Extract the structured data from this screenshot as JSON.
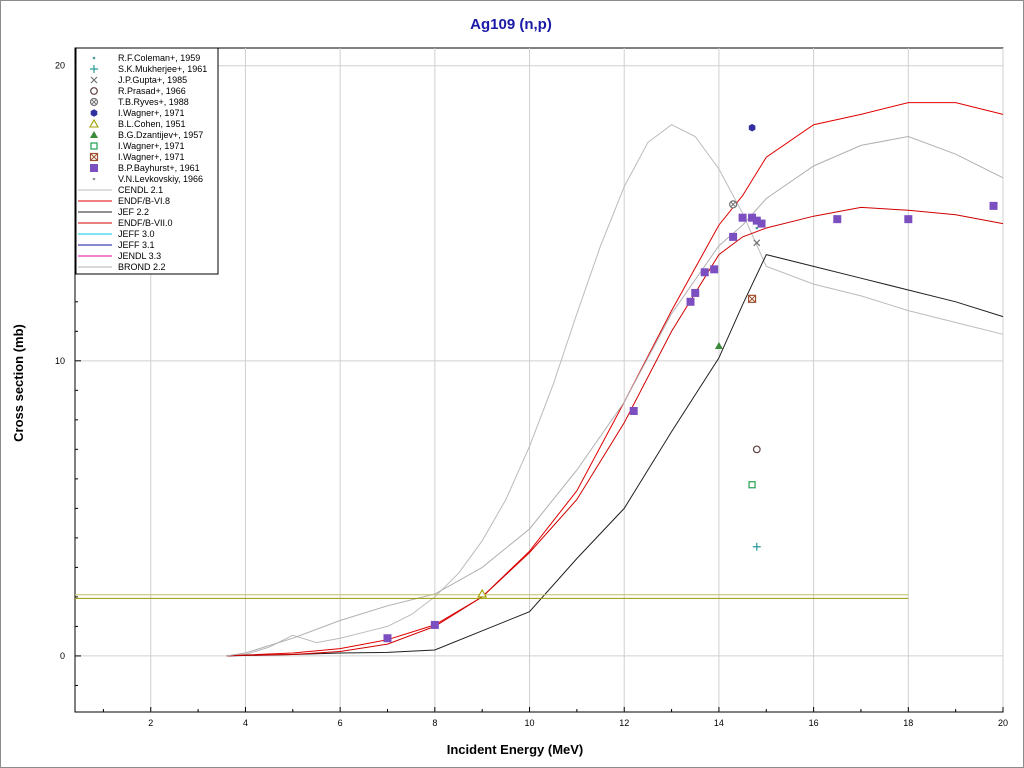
{
  "chart_data": {
    "type": "scatter",
    "title": "Ag109 (n,p)",
    "xlabel": "Incident Energy (MeV)",
    "ylabel": "Cross section (mb)",
    "xlim": [
      0.4,
      20
    ],
    "ylim": [
      -1.9,
      20.6
    ],
    "x_ticks": [
      2,
      4,
      6,
      8,
      10,
      12,
      14,
      16,
      18,
      20
    ],
    "y_ticks": [
      0,
      10,
      20
    ],
    "grid": true,
    "legend_position": "top-left",
    "series": [
      {
        "name": "R.F.Coleman+, 1959",
        "kind": "points",
        "marker": "dot",
        "color": "#4a9a9a",
        "points": [
          [
            14.8,
            14.5
          ]
        ]
      },
      {
        "name": "S.K.Mukherjee+, 1961",
        "kind": "points",
        "marker": "plus",
        "color": "#2a9a9a",
        "points": [
          [
            14.8,
            3.7
          ]
        ]
      },
      {
        "name": "J.P.Gupta+, 1985",
        "kind": "points",
        "marker": "x",
        "color": "#707070",
        "points": [
          [
            14.8,
            14.0
          ]
        ]
      },
      {
        "name": "R.Prasad+, 1966",
        "kind": "points",
        "marker": "circle-open",
        "color": "#604040",
        "points": [
          [
            14.8,
            7.0
          ]
        ]
      },
      {
        "name": "T.B.Ryves+, 1988",
        "kind": "points",
        "marker": "circle-x",
        "color": "#707070",
        "points": [
          [
            14.3,
            15.3
          ]
        ]
      },
      {
        "name": "I.Wagner+, 1971",
        "kind": "points",
        "marker": "hexagon",
        "color": "#3030a0",
        "points": [
          [
            14.7,
            17.9
          ]
        ]
      },
      {
        "name": "B.L.Cohen, 1951",
        "kind": "points",
        "marker": "triangle-open",
        "color": "#a0a000",
        "points": [
          [
            9.0,
            2.1
          ]
        ]
      },
      {
        "name": "B.G.Dzantijev+, 1957",
        "kind": "points",
        "marker": "triangle",
        "color": "#3a8a3a",
        "points": [
          [
            14.0,
            10.5
          ]
        ]
      },
      {
        "name": "I.Wagner+, 1971",
        "kind": "points",
        "marker": "square-open",
        "color": "#20a050",
        "points": [
          [
            14.7,
            5.8
          ]
        ]
      },
      {
        "name": "I.Wagner+, 1971",
        "kind": "points",
        "marker": "square-x",
        "color": "#a05030",
        "points": [
          [
            14.7,
            12.1
          ]
        ]
      },
      {
        "name": "B.P.Bayhurst+, 1961",
        "kind": "points",
        "marker": "square",
        "color": "#7b4fc0",
        "points": [
          [
            7.0,
            0.6
          ],
          [
            8.0,
            1.05
          ],
          [
            12.2,
            8.3
          ],
          [
            13.4,
            12.0
          ],
          [
            13.5,
            12.3
          ],
          [
            13.7,
            13.0
          ],
          [
            13.9,
            13.1
          ],
          [
            14.3,
            14.2
          ],
          [
            14.5,
            14.85
          ],
          [
            14.7,
            14.85
          ],
          [
            14.8,
            14.75
          ],
          [
            14.9,
            14.65
          ],
          [
            16.5,
            14.8
          ],
          [
            18.0,
            14.8
          ],
          [
            19.8,
            15.25
          ]
        ]
      },
      {
        "name": "V.N.Levkovskiy, 1966",
        "kind": "points",
        "marker": "dot",
        "color": "#909090",
        "points": []
      },
      {
        "name": "CENDL 2.1",
        "kind": "line",
        "color": "#bbbbbb",
        "points": [
          [
            3.6,
            0
          ],
          [
            4.0,
            0.05
          ],
          [
            4.5,
            0.3
          ],
          [
            5.0,
            0.7
          ],
          [
            5.5,
            0.45
          ],
          [
            6.0,
            0.6
          ],
          [
            6.5,
            0.8
          ],
          [
            7.0,
            1.0
          ],
          [
            7.5,
            1.4
          ],
          [
            8.0,
            2.0
          ],
          [
            8.5,
            2.8
          ],
          [
            9.0,
            3.9
          ],
          [
            9.5,
            5.3
          ],
          [
            10.0,
            7.1
          ],
          [
            10.5,
            9.2
          ],
          [
            11.0,
            11.6
          ],
          [
            11.5,
            13.9
          ],
          [
            12.0,
            15.9
          ],
          [
            12.5,
            17.4
          ],
          [
            13.0,
            18.0
          ],
          [
            13.5,
            17.6
          ],
          [
            14.0,
            16.5
          ],
          [
            14.5,
            15.0
          ],
          [
            15.0,
            13.2
          ],
          [
            16.0,
            12.6
          ],
          [
            17.0,
            12.2
          ],
          [
            18.0,
            11.7
          ],
          [
            19.0,
            11.3
          ],
          [
            20.0,
            10.9
          ]
        ]
      },
      {
        "name": "ENDF/B-VI.8",
        "kind": "line",
        "color": "#e00000",
        "points": [
          [
            3.6,
            0
          ],
          [
            4.0,
            0.03
          ],
          [
            5.0,
            0.1
          ],
          [
            6.0,
            0.25
          ],
          [
            7.0,
            0.55
          ],
          [
            8.0,
            1.05
          ],
          [
            9.0,
            2.0
          ],
          [
            10.0,
            3.55
          ],
          [
            11.0,
            5.6
          ],
          [
            12.0,
            8.6
          ],
          [
            13.0,
            11.7
          ],
          [
            14.0,
            14.6
          ],
          [
            14.5,
            15.6
          ],
          [
            15.0,
            16.9
          ],
          [
            16.0,
            18.0
          ],
          [
            17.0,
            18.35
          ],
          [
            18.0,
            18.75
          ],
          [
            19.0,
            18.75
          ],
          [
            20.0,
            18.35
          ]
        ]
      },
      {
        "name": "JEF 2.2",
        "kind": "line",
        "color": "#202020",
        "points": [
          [
            3.6,
            0
          ],
          [
            5.0,
            0.05
          ],
          [
            6.0,
            0.1
          ],
          [
            7.0,
            0.12
          ],
          [
            8.0,
            0.2
          ],
          [
            9.0,
            0.85
          ],
          [
            10.0,
            1.5
          ],
          [
            11.0,
            3.3
          ],
          [
            12.0,
            5.0
          ],
          [
            13.0,
            7.6
          ],
          [
            14.0,
            10.1
          ],
          [
            14.5,
            11.9
          ],
          [
            15.0,
            13.6
          ],
          [
            16.0,
            13.2
          ],
          [
            17.0,
            12.8
          ],
          [
            18.0,
            12.4
          ],
          [
            19.0,
            12.0
          ],
          [
            20.0,
            11.5
          ]
        ]
      },
      {
        "name": "ENDF/B-VII.0",
        "kind": "line",
        "color": "#d00000",
        "points": [
          [
            3.6,
            0
          ],
          [
            4.0,
            0.02
          ],
          [
            5.0,
            0.05
          ],
          [
            6.0,
            0.15
          ],
          [
            7.0,
            0.4
          ],
          [
            8.0,
            1.0
          ],
          [
            9.0,
            2.0
          ],
          [
            10.0,
            3.5
          ],
          [
            11.0,
            5.3
          ],
          [
            12.0,
            7.9
          ],
          [
            13.0,
            11.0
          ],
          [
            14.0,
            13.6
          ],
          [
            14.5,
            14.2
          ],
          [
            15.0,
            14.5
          ],
          [
            16.0,
            14.9
          ],
          [
            17.0,
            15.2
          ],
          [
            18.0,
            15.1
          ],
          [
            19.0,
            14.95
          ],
          [
            20.0,
            14.65
          ]
        ]
      },
      {
        "name": "JEFF 3.0",
        "kind": "line",
        "color": "#00c8e0",
        "points": []
      },
      {
        "name": "JEFF 3.1",
        "kind": "line",
        "color": "#1010a0",
        "points": []
      },
      {
        "name": "JENDL 3.3",
        "kind": "line",
        "color": "#e000a0",
        "points": []
      },
      {
        "name": "BROND 2.2",
        "kind": "line",
        "color": "#b0b0b0",
        "points": [
          [
            3.6,
            0
          ],
          [
            4.0,
            0.1
          ],
          [
            5.0,
            0.6
          ],
          [
            6.0,
            1.2
          ],
          [
            7.0,
            1.7
          ],
          [
            8.0,
            2.1
          ],
          [
            9.0,
            3.0
          ],
          [
            10.0,
            4.3
          ],
          [
            11.0,
            6.3
          ],
          [
            12.0,
            8.6
          ],
          [
            13.0,
            11.6
          ],
          [
            14.0,
            13.9
          ],
          [
            14.5,
            14.6
          ],
          [
            15.0,
            15.5
          ],
          [
            16.0,
            16.6
          ],
          [
            17.0,
            17.3
          ],
          [
            18.0,
            17.6
          ],
          [
            19.0,
            17.0
          ],
          [
            20.0,
            16.2
          ]
        ]
      },
      {
        "name": "",
        "kind": "line",
        "legend": false,
        "color": "#9a9a00",
        "points": [
          [
            0.4,
            1.95
          ],
          [
            18.0,
            1.95
          ]
        ]
      },
      {
        "name": "",
        "kind": "line",
        "legend": false,
        "color": "#c0c060",
        "points": [
          [
            0.4,
            2.07
          ],
          [
            18.0,
            2.07
          ]
        ]
      }
    ]
  }
}
